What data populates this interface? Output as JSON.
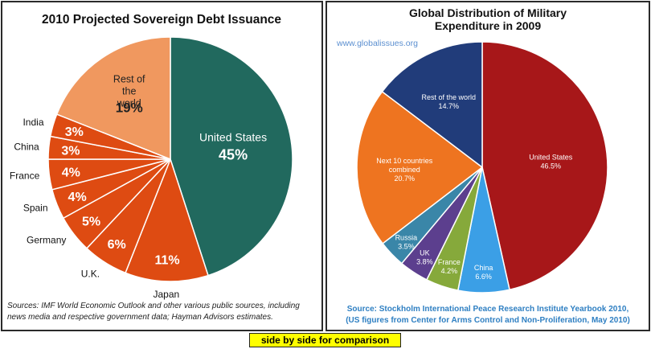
{
  "caption": "side by side for comparison",
  "chart_data": [
    {
      "type": "pie",
      "title": "2010 Projected Sovereign Debt Issuance",
      "slices": [
        {
          "label": "United States",
          "value": 45,
          "value_label": "45%",
          "color": "#21695e"
        },
        {
          "label": "Japan",
          "value": 11,
          "value_label": "11%",
          "color": "#de4b12"
        },
        {
          "label": "U.K.",
          "value": 6,
          "value_label": "6%",
          "color": "#de4b12"
        },
        {
          "label": "Germany",
          "value": 5,
          "value_label": "5%",
          "color": "#de4b12"
        },
        {
          "label": "Spain",
          "value": 4,
          "value_label": "4%",
          "color": "#de4b12"
        },
        {
          "label": "France",
          "value": 4,
          "value_label": "4%",
          "color": "#de4b12"
        },
        {
          "label": "China",
          "value": 3,
          "value_label": "3%",
          "color": "#de4b12"
        },
        {
          "label": "India",
          "value": 3,
          "value_label": "3%",
          "color": "#de4b12"
        },
        {
          "label": "Rest of the world",
          "value": 19,
          "value_label": "19%",
          "color": "#f0985f"
        }
      ],
      "source": "Sources:  IMF World Economic Outlook and other various public sources, including news media and respective government data; Hayman Advisors estimates."
    },
    {
      "type": "pie",
      "title": "Global Distribution of Military Expenditure in 2009",
      "website": "www.globalissues.org",
      "slices": [
        {
          "label": "United States",
          "value": 46.5,
          "value_label": "46.5%",
          "color": "#a71719"
        },
        {
          "label": "China",
          "value": 6.6,
          "value_label": "6.6%",
          "color": "#3b9fe6"
        },
        {
          "label": "France",
          "value": 4.2,
          "value_label": "4.2%",
          "color": "#86a93b"
        },
        {
          "label": "UK",
          "value": 3.8,
          "value_label": "3.8%",
          "color": "#5c3f8e"
        },
        {
          "label": "Russia",
          "value": 3.5,
          "value_label": "3.5%",
          "color": "#3a86a8"
        },
        {
          "label": "Next 10 countries combined",
          "value": 20.7,
          "value_label": "20.7%",
          "color": "#ee7420"
        },
        {
          "label": "Rest of the world",
          "value": 14.7,
          "value_label": "14.7%",
          "color": "#213c7a"
        }
      ],
      "source": "Source: Stockholm International Peace Research Institute Yearbook 2010, (US figures from Center for Arms Control and Non-Proliferation, May 2010)"
    }
  ]
}
